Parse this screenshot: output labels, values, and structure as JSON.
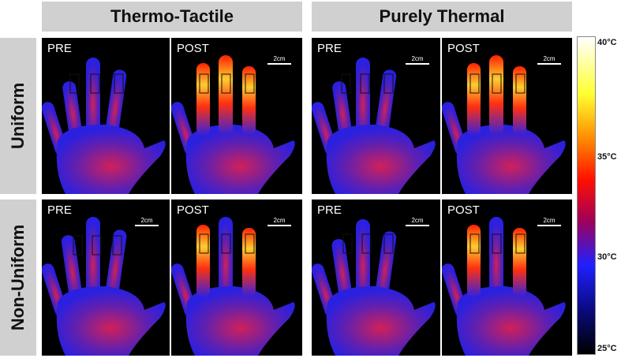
{
  "columns": [
    "Thermo-Tactile",
    "Purely Thermal"
  ],
  "rows": [
    "Uniform",
    "Non-Uniform"
  ],
  "panel_labels": {
    "pre": "PRE",
    "post": "POST"
  },
  "scale_bar_label": "2cm",
  "colorbar": {
    "ticks": [
      "40°C",
      "35°C",
      "30°C",
      "25°C"
    ],
    "colors": [
      "#ffffff",
      "#ffff30",
      "#ff8c00",
      "#ff1000",
      "#a0005a",
      "#2020ff",
      "#0a0a80",
      "#000000"
    ]
  }
}
